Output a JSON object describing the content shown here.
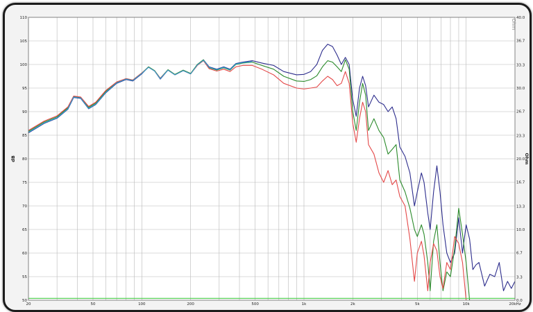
{
  "chart_data": {
    "type": "line",
    "title": "",
    "xlabel": "",
    "ylabel": "dB",
    "y2label": "Ohm",
    "corner_label": "Ohm",
    "x_scale": "log",
    "xlim": [
      20,
      20000
    ],
    "ylim": [
      50,
      110
    ],
    "y2lim": [
      0,
      40
    ],
    "grid": true,
    "x_ticks": [
      20,
      50,
      100,
      200,
      500,
      1000,
      2000,
      5000,
      10000,
      20000
    ],
    "x_tick_labels": [
      "20",
      "50",
      "100",
      "200",
      "500",
      "1k",
      "2k",
      "5k",
      "10k",
      "20kHz"
    ],
    "y_ticks": [
      50,
      55,
      60,
      65,
      70,
      75,
      80,
      85,
      90,
      95,
      100,
      105,
      110
    ],
    "y_tick_labels": [
      "50",
      "55",
      "60",
      "65",
      "70",
      "75",
      "80",
      "85",
      "90",
      "95",
      "100",
      "105",
      "110"
    ],
    "y2_ticks": [
      0,
      3.3,
      6.7,
      10,
      13.3,
      16.7,
      20,
      23.3,
      26.7,
      30,
      33.3,
      36.7,
      40
    ],
    "y2_tick_labels": [
      "0.0",
      "3.3",
      "6.7",
      "10.0",
      "13.3",
      "16.7",
      "20.0",
      "23.3",
      "26.7",
      "30.0",
      "33.3",
      "36.7",
      "40.0"
    ],
    "series": [
      {
        "color": "#2c2c8c",
        "points": [
          [
            20,
            85.5
          ],
          [
            25,
            87.5
          ],
          [
            30,
            88.6
          ],
          [
            35,
            90.5
          ],
          [
            38,
            93.0
          ],
          [
            42,
            92.8
          ],
          [
            47,
            90.6
          ],
          [
            52,
            91.5
          ],
          [
            60,
            94.0
          ],
          [
            70,
            96.0
          ],
          [
            80,
            96.8
          ],
          [
            88,
            96.5
          ],
          [
            100,
            98.0
          ],
          [
            110,
            99.5
          ],
          [
            120,
            98.6
          ],
          [
            130,
            96.9
          ],
          [
            145,
            98.8
          ],
          [
            160,
            97.8
          ],
          [
            180,
            98.7
          ],
          [
            200,
            98.0
          ],
          [
            220,
            100.0
          ],
          [
            240,
            101.0
          ],
          [
            260,
            99.5
          ],
          [
            290,
            99.0
          ],
          [
            320,
            99.5
          ],
          [
            350,
            99.0
          ],
          [
            380,
            100.2
          ],
          [
            420,
            100.5
          ],
          [
            480,
            100.8
          ],
          [
            550,
            100.3
          ],
          [
            650,
            99.8
          ],
          [
            750,
            98.5
          ],
          [
            900,
            97.8
          ],
          [
            1000,
            97.9
          ],
          [
            1100,
            98.5
          ],
          [
            1200,
            100.0
          ],
          [
            1300,
            103.0
          ],
          [
            1400,
            104.3
          ],
          [
            1500,
            103.8
          ],
          [
            1600,
            102.0
          ],
          [
            1700,
            100.0
          ],
          [
            1800,
            101.5
          ],
          [
            1900,
            100.0
          ],
          [
            2000,
            92.5
          ],
          [
            2100,
            89.0
          ],
          [
            2200,
            95.0
          ],
          [
            2300,
            97.5
          ],
          [
            2400,
            95.5
          ],
          [
            2500,
            91.0
          ],
          [
            2700,
            93.5
          ],
          [
            2900,
            92.0
          ],
          [
            3100,
            91.5
          ],
          [
            3300,
            90.0
          ],
          [
            3500,
            91.0
          ],
          [
            3700,
            88.5
          ],
          [
            3900,
            82.5
          ],
          [
            4200,
            80.5
          ],
          [
            4500,
            77.0
          ],
          [
            4800,
            70.0
          ],
          [
            5000,
            73.0
          ],
          [
            5300,
            77.0
          ],
          [
            5500,
            75.0
          ],
          [
            5800,
            68.5
          ],
          [
            6000,
            65.0
          ],
          [
            6300,
            73.0
          ],
          [
            6600,
            78.5
          ],
          [
            6900,
            73.0
          ],
          [
            7200,
            66.0
          ],
          [
            7600,
            60.0
          ],
          [
            8000,
            58.0
          ],
          [
            8500,
            60.0
          ],
          [
            9000,
            67.5
          ],
          [
            9500,
            60.0
          ],
          [
            10000,
            66.0
          ],
          [
            10500,
            63.0
          ],
          [
            11000,
            56.5
          ],
          [
            11500,
            57.5
          ],
          [
            12000,
            58.0
          ],
          [
            13000,
            53.0
          ],
          [
            14000,
            55.5
          ],
          [
            15000,
            55.0
          ],
          [
            16000,
            58.0
          ],
          [
            17000,
            52.0
          ],
          [
            18000,
            54.0
          ],
          [
            19000,
            52.5
          ],
          [
            20000,
            54.0
          ]
        ]
      },
      {
        "color": "#2a8a2a",
        "points": [
          [
            20,
            85.8
          ],
          [
            25,
            87.8
          ],
          [
            30,
            88.9
          ],
          [
            35,
            90.8
          ],
          [
            38,
            93.2
          ],
          [
            42,
            93.0
          ],
          [
            47,
            90.9
          ],
          [
            52,
            91.8
          ],
          [
            60,
            94.3
          ],
          [
            70,
            96.2
          ],
          [
            80,
            97.0
          ],
          [
            88,
            96.7
          ],
          [
            100,
            98.2
          ],
          [
            110,
            99.5
          ],
          [
            120,
            98.7
          ],
          [
            130,
            97.1
          ],
          [
            145,
            98.9
          ],
          [
            160,
            97.9
          ],
          [
            180,
            98.8
          ],
          [
            200,
            98.1
          ],
          [
            220,
            100.0
          ],
          [
            240,
            101.0
          ],
          [
            260,
            99.3
          ],
          [
            290,
            98.8
          ],
          [
            320,
            99.3
          ],
          [
            350,
            98.8
          ],
          [
            380,
            100.0
          ],
          [
            420,
            100.3
          ],
          [
            480,
            100.5
          ],
          [
            550,
            99.8
          ],
          [
            650,
            99.0
          ],
          [
            750,
            97.5
          ],
          [
            900,
            96.5
          ],
          [
            1000,
            96.4
          ],
          [
            1100,
            96.8
          ],
          [
            1200,
            97.6
          ],
          [
            1300,
            99.5
          ],
          [
            1400,
            100.8
          ],
          [
            1500,
            100.5
          ],
          [
            1600,
            99.5
          ],
          [
            1700,
            98.5
          ],
          [
            1800,
            101.0
          ],
          [
            1900,
            99.0
          ],
          [
            2000,
            90.0
          ],
          [
            2100,
            86.0
          ],
          [
            2200,
            92.0
          ],
          [
            2300,
            96.0
          ],
          [
            2400,
            93.5
          ],
          [
            2500,
            86.0
          ],
          [
            2700,
            88.5
          ],
          [
            2900,
            86.0
          ],
          [
            3100,
            84.5
          ],
          [
            3300,
            81.0
          ],
          [
            3500,
            82.0
          ],
          [
            3700,
            83.0
          ],
          [
            3900,
            75.5
          ],
          [
            4200,
            73.0
          ],
          [
            4500,
            69.5
          ],
          [
            4800,
            65.0
          ],
          [
            5000,
            63.5
          ],
          [
            5300,
            66.0
          ],
          [
            5500,
            64.0
          ],
          [
            5800,
            58.0
          ],
          [
            6000,
            52.0
          ],
          [
            6300,
            62.5
          ],
          [
            6600,
            66.0
          ],
          [
            6900,
            58.0
          ],
          [
            7200,
            52.0
          ],
          [
            7600,
            56.0
          ],
          [
            8000,
            55.0
          ],
          [
            8500,
            61.0
          ],
          [
            9000,
            69.5
          ],
          [
            9500,
            64.0
          ],
          [
            10000,
            58.0
          ],
          [
            10500,
            50.0
          ]
        ]
      },
      {
        "color": "#e44848",
        "points": [
          [
            20,
            86.0
          ],
          [
            25,
            88.0
          ],
          [
            30,
            89.1
          ],
          [
            35,
            91.0
          ],
          [
            38,
            93.3
          ],
          [
            42,
            93.1
          ],
          [
            47,
            91.1
          ],
          [
            52,
            92.0
          ],
          [
            60,
            94.5
          ],
          [
            70,
            96.3
          ],
          [
            80,
            97.0
          ],
          [
            88,
            96.7
          ],
          [
            100,
            98.2
          ],
          [
            110,
            99.4
          ],
          [
            120,
            98.6
          ],
          [
            130,
            97.1
          ],
          [
            145,
            98.8
          ],
          [
            160,
            97.8
          ],
          [
            180,
            98.7
          ],
          [
            200,
            98.0
          ],
          [
            220,
            99.8
          ],
          [
            240,
            100.8
          ],
          [
            260,
            99.1
          ],
          [
            290,
            98.6
          ],
          [
            320,
            99.0
          ],
          [
            350,
            98.5
          ],
          [
            380,
            99.5
          ],
          [
            420,
            99.8
          ],
          [
            480,
            99.8
          ],
          [
            550,
            99.0
          ],
          [
            650,
            97.8
          ],
          [
            750,
            96.0
          ],
          [
            900,
            95.0
          ],
          [
            1000,
            94.8
          ],
          [
            1100,
            95.0
          ],
          [
            1200,
            95.2
          ],
          [
            1300,
            96.5
          ],
          [
            1400,
            97.5
          ],
          [
            1500,
            96.8
          ],
          [
            1600,
            95.5
          ],
          [
            1700,
            96.0
          ],
          [
            1800,
            98.5
          ],
          [
            1900,
            96.0
          ],
          [
            2000,
            87.5
          ],
          [
            2100,
            83.5
          ],
          [
            2200,
            88.5
          ],
          [
            2300,
            92.0
          ],
          [
            2400,
            90.0
          ],
          [
            2500,
            83.0
          ],
          [
            2700,
            81.0
          ],
          [
            2900,
            77.0
          ],
          [
            3100,
            75.0
          ],
          [
            3300,
            77.5
          ],
          [
            3500,
            74.5
          ],
          [
            3700,
            75.5
          ],
          [
            3900,
            72.0
          ],
          [
            4200,
            70.0
          ],
          [
            4500,
            63.0
          ],
          [
            4800,
            54.0
          ],
          [
            5000,
            60.0
          ],
          [
            5300,
            62.5
          ],
          [
            5500,
            59.5
          ],
          [
            5800,
            52.0
          ],
          [
            6000,
            58.0
          ],
          [
            6300,
            62.0
          ],
          [
            6600,
            60.5
          ],
          [
            6900,
            55.0
          ],
          [
            7200,
            52.5
          ],
          [
            7600,
            58.0
          ],
          [
            8000,
            56.5
          ],
          [
            8500,
            63.5
          ],
          [
            9000,
            62.0
          ],
          [
            9500,
            58.0
          ],
          [
            10000,
            50.0
          ]
        ]
      },
      {
        "color": "#2f9fd0",
        "points": [
          [
            20,
            85.6
          ],
          [
            25,
            87.6
          ],
          [
            30,
            88.7
          ],
          [
            35,
            90.6
          ],
          [
            38,
            93.1
          ],
          [
            42,
            92.9
          ],
          [
            47,
            90.7
          ],
          [
            52,
            91.6
          ],
          [
            60,
            94.1
          ],
          [
            70,
            96.1
          ],
          [
            80,
            96.9
          ],
          [
            88,
            96.6
          ],
          [
            100,
            98.1
          ],
          [
            110,
            99.4
          ],
          [
            120,
            98.6
          ],
          [
            130,
            97.0
          ],
          [
            145,
            98.8
          ],
          [
            160,
            97.8
          ],
          [
            180,
            98.7
          ],
          [
            200,
            98.0
          ],
          [
            220,
            99.9
          ],
          [
            240,
            100.9
          ],
          [
            260,
            99.4
          ],
          [
            290,
            98.9
          ],
          [
            320,
            99.4
          ],
          [
            350,
            98.9
          ],
          [
            380,
            100.1
          ],
          [
            420,
            100.4
          ],
          [
            480,
            100.6
          ]
        ]
      },
      {
        "color": "#44cc44",
        "points": [
          [
            20,
            50.4
          ],
          [
            1000,
            50.4
          ],
          [
            20000,
            50.4
          ]
        ]
      }
    ]
  }
}
